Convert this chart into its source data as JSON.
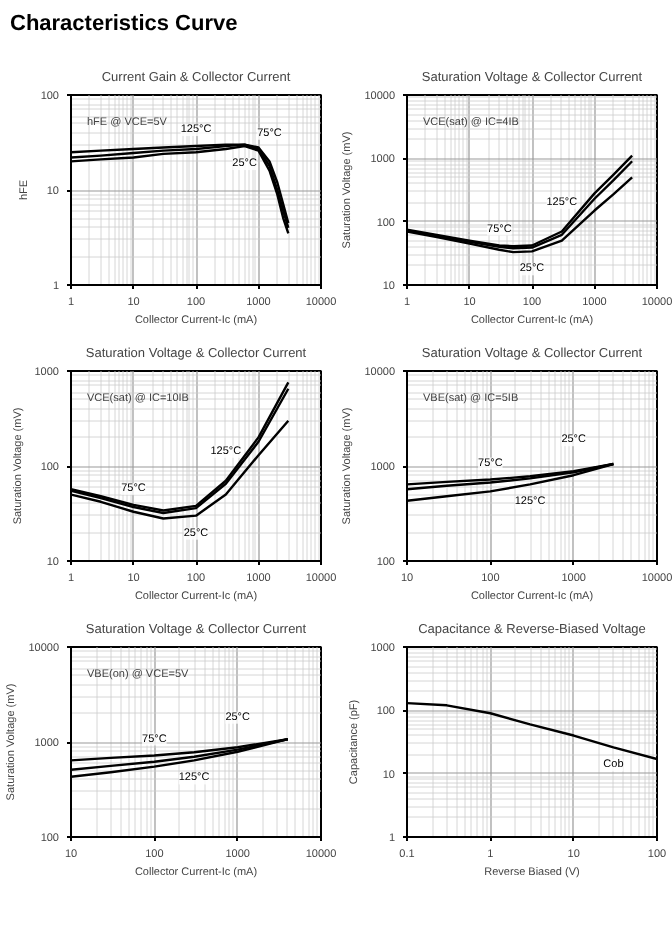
{
  "chart_data": [
    {
      "type": "line",
      "title": "Current Gain & Collector Current",
      "xlabel": "Collector Current-Ic (mA)",
      "ylabel": "hFE",
      "log": "xy",
      "grid": true,
      "line_style": "solid",
      "xlim": [
        1,
        10000
      ],
      "ylim": [
        1,
        100
      ],
      "xticks": [
        1,
        10,
        100,
        1000,
        10000
      ],
      "yticks": [
        1,
        10,
        100
      ],
      "x": [
        1,
        3,
        10,
        30,
        100,
        300,
        600,
        1000,
        1500,
        2000,
        2500,
        3000
      ],
      "series": [
        {
          "name": "125°C",
          "color": "#000000",
          "values": [
            25,
            26,
            27,
            28,
            29,
            30,
            30,
            28,
            20,
            12,
            7,
            4.5
          ]
        },
        {
          "name": "75°C",
          "color": "#000000",
          "values": [
            22,
            23,
            24.5,
            26,
            27,
            29,
            30,
            27,
            18,
            10,
            6,
            4
          ]
        },
        {
          "name": "25°C",
          "color": "#000000",
          "values": [
            20,
            21,
            22,
            24,
            25,
            27,
            29,
            26,
            16,
            9,
            5,
            3.5
          ]
        }
      ],
      "subtitle": "Characteristics Curve",
      "annotations": [
        "hFE @ VCE=5V"
      ]
    },
    {
      "type": "line",
      "title": "Saturation Voltage & Collector Current",
      "xlabel": "Collector Current-Ic (mA)",
      "ylabel": "Saturation Voltage (mV)",
      "log": "xy",
      "grid": true,
      "line_style": "solid",
      "xlim": [
        1,
        10000
      ],
      "ylim": [
        10,
        10000
      ],
      "xticks": [
        1,
        10,
        100,
        1000,
        10000
      ],
      "yticks": [
        10,
        100,
        1000,
        10000
      ],
      "x": [
        1,
        3,
        10,
        30,
        50,
        100,
        300,
        1000,
        2000,
        4000
      ],
      "series": [
        {
          "name": "75°C",
          "color": "#000000",
          "values": [
            75,
            62,
            50,
            42,
            41,
            42,
            70,
            280,
            550,
            1100
          ]
        },
        {
          "name": "125°C",
          "color": "#000000",
          "values": [
            72,
            60,
            48,
            40,
            38,
            39,
            62,
            230,
            450,
            900
          ]
        },
        {
          "name": "25°C",
          "color": "#000000",
          "values": [
            70,
            57,
            45,
            36,
            33,
            34,
            50,
            150,
            270,
            500
          ]
        }
      ],
      "annotations": [
        "VCE(sat) @ IC=4IB"
      ]
    },
    {
      "type": "line",
      "title": "Saturation Voltage & Collector Current",
      "xlabel": "Collector Current-Ic (mA)",
      "ylabel": "Saturation Voltage (mV)",
      "log": "xy",
      "grid": true,
      "line_style": "solid",
      "xlim": [
        1,
        10000
      ],
      "ylim": [
        10,
        1000
      ],
      "xticks": [
        1,
        10,
        100,
        1000,
        10000
      ],
      "yticks": [
        10,
        100,
        1000
      ],
      "x": [
        1,
        3,
        10,
        30,
        100,
        300,
        1000,
        3000
      ],
      "series": [
        {
          "name": "75°C",
          "color": "#000000",
          "values": [
            57,
            48,
            39,
            34,
            38,
            70,
            200,
            760
          ]
        },
        {
          "name": "125°C",
          "color": "#000000",
          "values": [
            55,
            46,
            37,
            32,
            36,
            65,
            180,
            650
          ]
        },
        {
          "name": "25°C",
          "color": "#000000",
          "values": [
            50,
            42,
            33,
            28,
            30,
            50,
            130,
            300
          ]
        }
      ],
      "annotations": [
        "VCE(sat) @ IC=10IB"
      ]
    },
    {
      "type": "line",
      "title": "Saturation Voltage & Collector Current",
      "xlabel": "Collector Current-Ic (mA)",
      "ylabel": "Saturation Voltage (mV)",
      "log": "xy",
      "grid": true,
      "line_style": "solid",
      "xlim": [
        10,
        10000
      ],
      "ylim": [
        100,
        10000
      ],
      "xticks": [
        10,
        100,
        1000,
        10000
      ],
      "yticks": [
        100,
        1000,
        10000
      ],
      "x": [
        10,
        30,
        100,
        300,
        1000,
        3000
      ],
      "series": [
        {
          "name": "75°C",
          "color": "#000000",
          "values": [
            640,
            680,
            720,
            780,
            880,
            1050
          ]
        },
        {
          "name": "25°C",
          "color": "#000000",
          "values": [
            570,
            620,
            670,
            740,
            860,
            1050
          ]
        },
        {
          "name": "125°C",
          "color": "#000000",
          "values": [
            430,
            480,
            540,
            640,
            800,
            1050
          ]
        }
      ],
      "annotations": [
        "VBE(sat) @ IC=5IB"
      ]
    },
    {
      "type": "line",
      "title": "Saturation Voltage & Collector Current",
      "xlabel": "Collector Current-Ic (mA)",
      "ylabel": "Saturation Voltage (mV)",
      "log": "xy",
      "grid": true,
      "line_style": "solid",
      "xlim": [
        10,
        10000
      ],
      "ylim": [
        100,
        10000
      ],
      "xticks": [
        10,
        100,
        1000,
        10000
      ],
      "yticks": [
        100,
        1000,
        10000
      ],
      "x": [
        10,
        30,
        100,
        300,
        1000,
        4000
      ],
      "series": [
        {
          "name": "75°C",
          "color": "#000000",
          "values": [
            640,
            680,
            720,
            780,
            880,
            1070
          ]
        },
        {
          "name": "25°C",
          "color": "#000000",
          "values": [
            510,
            560,
            620,
            700,
            830,
            1070
          ]
        },
        {
          "name": "125°C",
          "color": "#000000",
          "values": [
            430,
            480,
            550,
            640,
            790,
            1070
          ]
        }
      ],
      "annotations": [
        "VBE(on) @ VCE=5V"
      ]
    },
    {
      "type": "line",
      "title": "Capacitance & Reverse-Biased Voltage",
      "xlabel": "Reverse Biased (V)",
      "ylabel": "Capacitance (pF)",
      "log": "xy",
      "grid": true,
      "line_style": "solid",
      "xlim": [
        0.1,
        100
      ],
      "ylim": [
        1,
        1000
      ],
      "xticks": [
        0.1,
        1,
        10,
        100
      ],
      "yticks": [
        1,
        10,
        100,
        1000
      ],
      "x": [
        0.1,
        0.3,
        1,
        3,
        10,
        30,
        100
      ],
      "series": [
        {
          "name": "Cob",
          "color": "#000000",
          "values": [
            130,
            120,
            90,
            60,
            40,
            26,
            17
          ]
        }
      ]
    }
  ]
}
